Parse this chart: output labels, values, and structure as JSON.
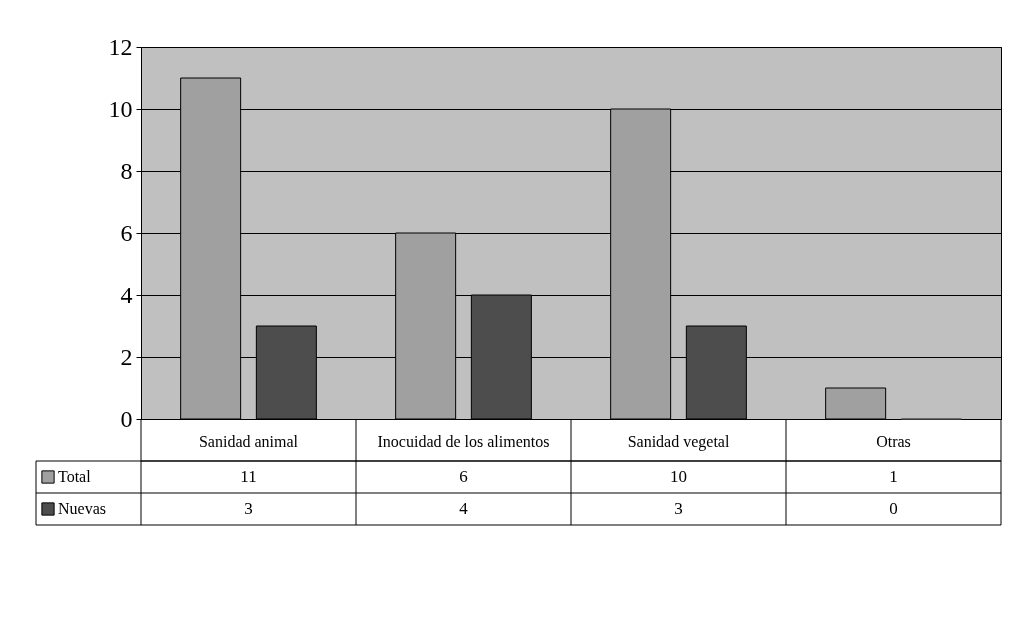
{
  "chart_data": {
    "type": "bar",
    "categories": [
      "Sanidad animal",
      "Inocuidad de los alimentos",
      "Sanidad vegetal",
      "Otras"
    ],
    "series": [
      {
        "name": "Total",
        "color": "#a0a0a0",
        "values": [
          11,
          6,
          10,
          1
        ]
      },
      {
        "name": "Nuevas",
        "color": "#4d4d4d",
        "values": [
          3,
          4,
          3,
          0
        ]
      }
    ],
    "ylim": [
      0,
      12
    ],
    "yticks": [
      0,
      2,
      4,
      6,
      8,
      10,
      12
    ],
    "grid": "y",
    "legend": "bottom left",
    "data_labels": true
  }
}
